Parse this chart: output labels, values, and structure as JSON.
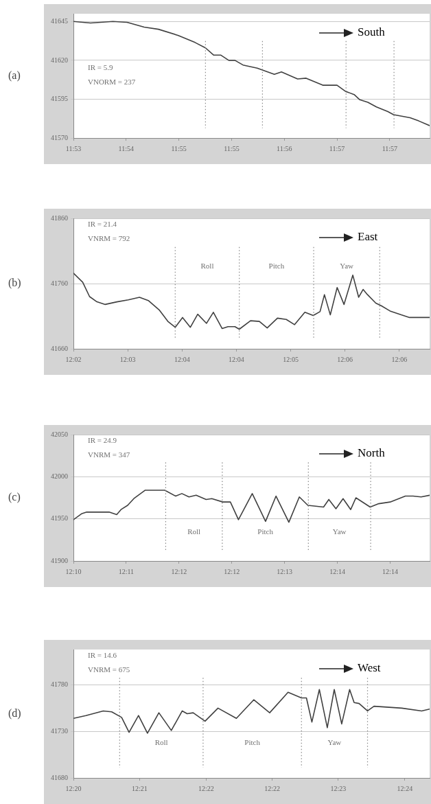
{
  "chart_data": [
    {
      "type": "line",
      "title": "(a)",
      "annotations": [
        "IR = 5.9",
        "VNORM = 237",
        "South"
      ],
      "grid": "y",
      "xlim": [
        11.8889,
        11.9639
      ],
      "ylim": [
        41570,
        41650
      ],
      "yticks": [
        41570,
        41595,
        41620,
        41645
      ],
      "xticks": [
        {
          "value": 11.8889,
          "label": "11:53"
        },
        {
          "value": 11.9,
          "label": "11:54"
        },
        {
          "value": 11.9111,
          "label": "11:55"
        },
        {
          "value": 11.9222,
          "label": "11:55"
        },
        {
          "value": 11.9333,
          "label": "11:56"
        },
        {
          "value": 11.9444,
          "label": "11:57"
        },
        {
          "value": 11.9555,
          "label": "11:57"
        }
      ],
      "ref_lines": [
        {
          "axis": "x",
          "value": 11.9167,
          "color": "#888888",
          "line_style": "dotted"
        },
        {
          "axis": "x",
          "value": 11.9287,
          "color": "#888888",
          "line_style": "dotted"
        },
        {
          "axis": "x",
          "value": 11.9463,
          "color": "#888888",
          "line_style": "dotted"
        },
        {
          "axis": "x",
          "value": 11.9564,
          "color": "#888888",
          "line_style": "dotted"
        }
      ],
      "series": [
        {
          "color": "#404040",
          "x": [
            11.8889,
            11.8925,
            11.8972,
            11.9002,
            11.9038,
            11.9068,
            11.911,
            11.9145,
            11.9167,
            11.9184,
            11.9199,
            11.9216,
            11.9229,
            11.9246,
            11.9276,
            11.9312,
            11.9327,
            11.9361,
            11.9379,
            11.9414,
            11.9444,
            11.9462,
            11.948,
            11.9492,
            11.9509,
            11.9527,
            11.9551,
            11.9563,
            11.9598,
            11.9616,
            11.9639
          ],
          "values": [
            41645,
            41644,
            41645,
            41644.5,
            41641.4,
            41640,
            41636,
            41631.5,
            41628,
            41623.4,
            41623.4,
            41620,
            41620,
            41617,
            41615,
            41611,
            41612.5,
            41608,
            41608.5,
            41604,
            41604,
            41600,
            41598,
            41594.6,
            41593,
            41590,
            41587,
            41585,
            41583,
            41581,
            41578
          ]
        }
      ]
    },
    {
      "type": "line",
      "title": "(b)",
      "annotations": [
        "IR = 21.4",
        "VNRM = 792",
        "East",
        "Roll",
        "Pitch",
        "Yaw"
      ],
      "grid": "y",
      "xlim": [
        12.0389,
        12.1117
      ],
      "ylim": [
        41660,
        41860
      ],
      "yticks": [
        41660,
        41760,
        41860
      ],
      "xticks": [
        {
          "value": 12.0389,
          "label": "12:02"
        },
        {
          "value": 12.05,
          "label": "12:03"
        },
        {
          "value": 12.0611,
          "label": "12:04"
        },
        {
          "value": 12.0722,
          "label": "12:04"
        },
        {
          "value": 12.0833,
          "label": "12:05"
        },
        {
          "value": 12.0944,
          "label": "12:06"
        },
        {
          "value": 12.1055,
          "label": "12:06"
        }
      ],
      "ref_lines": [
        {
          "axis": "x",
          "value": 12.0597,
          "color": "#888888",
          "line_style": "dotted"
        },
        {
          "axis": "x",
          "value": 12.0728,
          "color": "#888888",
          "line_style": "dotted"
        },
        {
          "axis": "x",
          "value": 12.088,
          "color": "#888888",
          "line_style": "dotted"
        },
        {
          "axis": "x",
          "value": 12.1015,
          "color": "#888888",
          "line_style": "dotted"
        }
      ],
      "series": [
        {
          "color": "#404040",
          "x": [
            12.0389,
            12.0408,
            12.0422,
            12.0437,
            12.0454,
            12.0478,
            12.0501,
            12.0524,
            12.0542,
            12.0565,
            12.0582,
            12.0597,
            12.0612,
            12.0628,
            12.0643,
            12.0661,
            12.0675,
            12.0693,
            12.0705,
            12.0719,
            12.0728,
            12.0751,
            12.0769,
            12.0785,
            12.0806,
            12.0824,
            12.0841,
            12.0862,
            12.0879,
            12.0893,
            12.0902,
            12.0914,
            12.0928,
            12.0942,
            12.096,
            12.0972,
            12.0981,
            12.099,
            12.1007,
            12.1018,
            12.1036,
            12.1059,
            12.1076,
            12.1117
          ],
          "values": [
            41776,
            41762,
            41740,
            41732,
            41728,
            41732,
            41735,
            41739,
            41734,
            41719,
            41702,
            41693,
            41708,
            41693,
            41713,
            41699,
            41716,
            41691,
            41694,
            41694,
            41690,
            41703,
            41702,
            41692,
            41707,
            41705,
            41697,
            41716,
            41711,
            41717,
            41743,
            41712,
            41754,
            41728,
            41773,
            41739,
            41751,
            41743,
            41730,
            41726,
            41718,
            41712,
            41708,
            41708
          ]
        }
      ]
    },
    {
      "type": "line",
      "title": "(c)",
      "annotations": [
        "IR = 24.9",
        "VNRM = 347",
        "North",
        "Roll",
        "Pitch",
        "Yaw"
      ],
      "grid": "y",
      "xlim": [
        12.1722,
        12.2471
      ],
      "ylim": [
        41900,
        42050
      ],
      "yticks": [
        41900,
        41950,
        42000,
        42050
      ],
      "xticks": [
        {
          "value": 12.1722,
          "label": "12:10"
        },
        {
          "value": 12.1833,
          "label": "12:11"
        },
        {
          "value": 12.1944,
          "label": "12:12"
        },
        {
          "value": 12.2055,
          "label": "12:12"
        },
        {
          "value": 12.2166,
          "label": "12:13"
        },
        {
          "value": 12.2277,
          "label": "12:14"
        },
        {
          "value": 12.2388,
          "label": "12:14"
        }
      ],
      "ref_lines": [
        {
          "axis": "x",
          "value": 12.1916,
          "color": "#888888",
          "line_style": "dotted"
        },
        {
          "axis": "x",
          "value": 12.2035,
          "color": "#888888",
          "line_style": "dotted"
        },
        {
          "axis": "x",
          "value": 12.2216,
          "color": "#888888",
          "line_style": "dotted"
        },
        {
          "axis": "x",
          "value": 12.2347,
          "color": "#888888",
          "line_style": "dotted"
        }
      ],
      "series": [
        {
          "color": "#404040",
          "x": [
            12.1722,
            12.1739,
            12.175,
            12.1797,
            12.1813,
            12.1822,
            12.1836,
            12.1849,
            12.1873,
            12.1914,
            12.1937,
            12.195,
            12.1965,
            12.198,
            12.2001,
            12.2013,
            12.2036,
            12.2052,
            12.2069,
            12.2098,
            12.2126,
            12.2148,
            12.2175,
            12.2197,
            12.2215,
            12.2248,
            12.2259,
            12.2274,
            12.2289,
            12.2305,
            12.2316,
            12.2346,
            12.2364,
            12.2388,
            12.242,
            12.2436,
            12.2453,
            12.2471
          ],
          "values": [
            41949,
            41956,
            41958,
            41958,
            41955,
            41961,
            41966,
            41974,
            41984,
            41984,
            41977,
            41980,
            41976,
            41978,
            41973,
            41974,
            41970,
            41970,
            41949,
            41980,
            41947,
            41977,
            41946,
            41976,
            41966,
            41964,
            41973,
            41962,
            41974,
            41961,
            41975,
            41964,
            41968,
            41970,
            41977,
            41977,
            41976,
            41978
          ]
        }
      ]
    },
    {
      "type": "line",
      "title": "(d)",
      "annotations": [
        "IR = 14.6",
        "VNRM = 675",
        "West",
        "Roll",
        "Pitch",
        "Yaw"
      ],
      "grid": "y",
      "xlim": [
        12.3333,
        12.405
      ],
      "ylim": [
        41680,
        41818
      ],
      "yticks": [
        41680,
        41730,
        41780
      ],
      "xticks": [
        {
          "value": 12.3333,
          "label": "12:20"
        },
        {
          "value": 12.3466,
          "label": "12:21"
        },
        {
          "value": 12.36,
          "label": "12:22"
        },
        {
          "value": 12.3733,
          "label": "12:22"
        },
        {
          "value": 12.3866,
          "label": "12:23"
        },
        {
          "value": 12.4,
          "label": "12:24"
        }
      ],
      "ref_lines": [
        {
          "axis": "x",
          "value": 12.3426,
          "color": "#888888",
          "line_style": "dotted"
        },
        {
          "axis": "x",
          "value": 12.3594,
          "color": "#888888",
          "line_style": "dotted"
        },
        {
          "axis": "x",
          "value": 12.3792,
          "color": "#888888",
          "line_style": "dotted"
        },
        {
          "axis": "x",
          "value": 12.3925,
          "color": "#888888",
          "line_style": "dotted"
        }
      ],
      "series": [
        {
          "color": "#404040",
          "x": [
            12.3333,
            12.3358,
            12.3393,
            12.341,
            12.343,
            12.3445,
            12.3464,
            12.3482,
            12.3505,
            12.353,
            12.3552,
            12.3562,
            12.3574,
            12.3598,
            12.3624,
            12.3661,
            12.3696,
            12.3728,
            12.3765,
            12.3792,
            12.3802,
            12.3813,
            12.3828,
            12.3844,
            12.3858,
            12.3873,
            12.3889,
            12.3898,
            12.3908,
            12.3925,
            12.3938,
            12.3994,
            12.4034,
            12.405
          ],
          "values": [
            41744,
            41747,
            41752,
            41751,
            41745,
            41729,
            41747,
            41728,
            41750,
            41731,
            41752,
            41749,
            41750,
            41741,
            41755,
            41744,
            41764,
            41750,
            41772,
            41766,
            41766,
            41740,
            41775,
            41734,
            41775,
            41738,
            41775,
            41761,
            41760,
            41752,
            41757,
            41755,
            41752,
            41754
          ]
        }
      ]
    }
  ]
}
